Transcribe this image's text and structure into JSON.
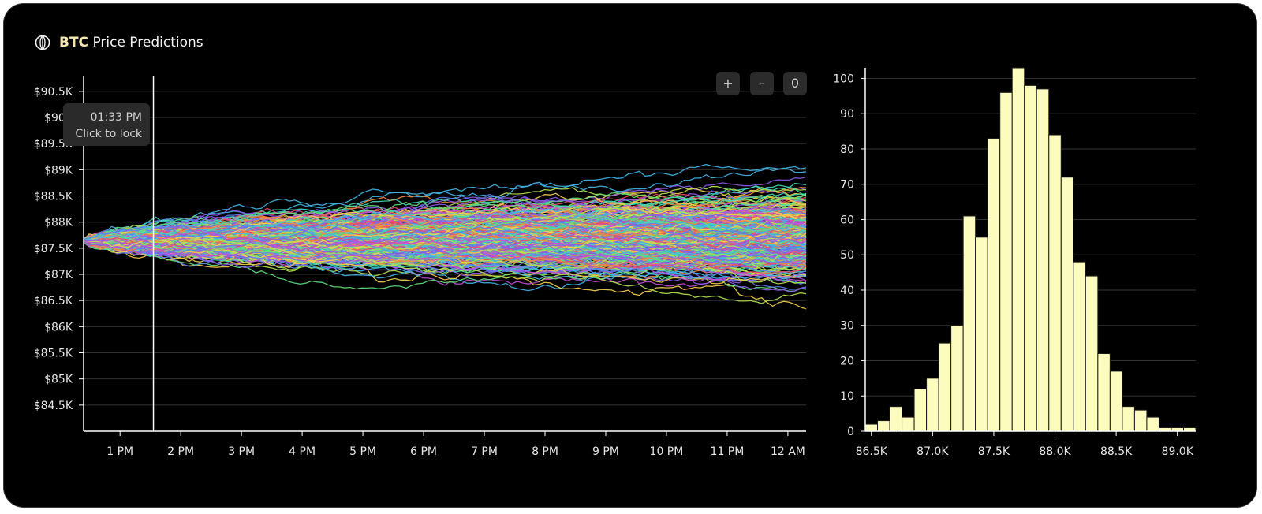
{
  "header": {
    "ticker": "BTC",
    "title_rest": "Price Predictions",
    "icon": "globe-icon"
  },
  "zoom_controls": [
    {
      "label": "+",
      "name": "zoom-in-button"
    },
    {
      "label": "-",
      "name": "zoom-out-button"
    },
    {
      "label": "0",
      "name": "zoom-reset-button"
    }
  ],
  "tooltip": {
    "time": "01:33 PM",
    "hint": "Click to lock"
  },
  "colors": {
    "background": "#000000",
    "grid": "#333333",
    "axis": "#ffffff",
    "bar_fill": "#fdfcbf",
    "bar_stroke": "#1a1a1a",
    "cursor_line": "#ffffff",
    "path_palette": [
      "#e94b6b",
      "#f28a3c",
      "#f6d04a",
      "#b5e34f",
      "#5ee07a",
      "#3fd9b4",
      "#41b6e8",
      "#5b7ef0",
      "#8d5ae8",
      "#c34fd8"
    ]
  },
  "chart_data": [
    {
      "type": "line",
      "title": "",
      "xlabel": "",
      "ylabel": "",
      "x_ticks": [
        "1 PM",
        "2 PM",
        "3 PM",
        "4 PM",
        "5 PM",
        "6 PM",
        "7 PM",
        "8 PM",
        "9 PM",
        "10 PM",
        "11 PM",
        "12 AM"
      ],
      "y_ticks": [
        "$84.5K",
        "$85K",
        "$85.5K",
        "$86K",
        "$86.5K",
        "$87K",
        "$87.5K",
        "$88K",
        "$88.5K",
        "$89K",
        "$89.5K",
        "$90K",
        "$90.5K"
      ],
      "y_tick_values": [
        84500,
        85000,
        85500,
        86000,
        86500,
        87000,
        87500,
        88000,
        88500,
        89000,
        89500,
        90000,
        90500
      ],
      "ylim": [
        84000,
        90800
      ],
      "x_range_hours": [
        12.4,
        24.3
      ],
      "start_value": 87650,
      "simulated_paths": 400,
      "cursor_time": "01:33 PM",
      "grid": true,
      "legend": "none"
    },
    {
      "type": "bar",
      "title": "",
      "xlabel": "",
      "ylabel": "",
      "bin_start": 86450,
      "bin_width": 100,
      "values": [
        2,
        3,
        7,
        4,
        12,
        15,
        25,
        30,
        61,
        55,
        83,
        96,
        103,
        98,
        97,
        84,
        72,
        48,
        44,
        22,
        17,
        7,
        6,
        4,
        1,
        1,
        1
      ],
      "x_ticks": [
        "86.5K",
        "87.0K",
        "87.5K",
        "88.0K",
        "88.5K",
        "89.0K"
      ],
      "x_tick_values": [
        86500,
        87000,
        87500,
        88000,
        88500,
        89000
      ],
      "y_ticks": [
        "0",
        "10",
        "20",
        "30",
        "40",
        "50",
        "60",
        "70",
        "80",
        "90",
        "100"
      ],
      "ylim": [
        0,
        103
      ],
      "xlim": [
        86450,
        89150
      ],
      "grid": true,
      "legend": "none"
    }
  ]
}
